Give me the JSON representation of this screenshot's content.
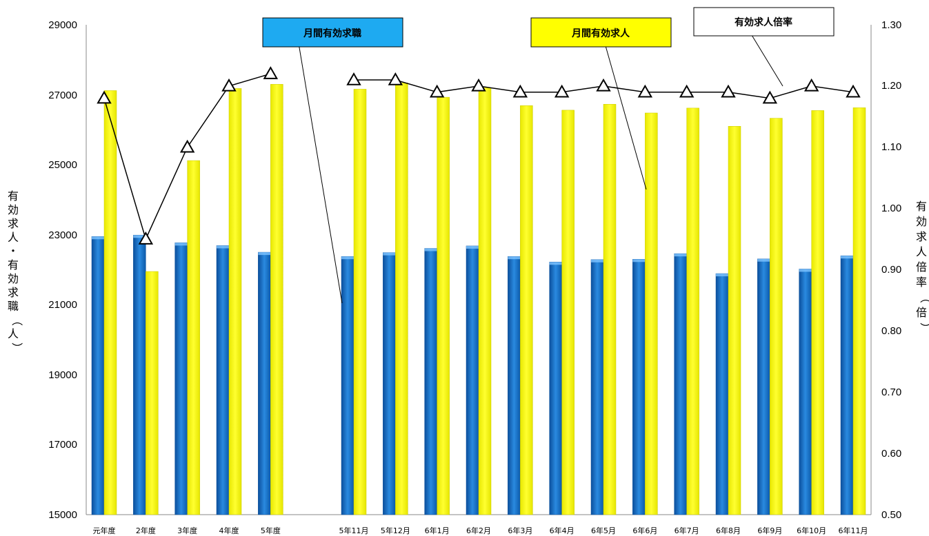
{
  "chart_data": {
    "type": "bar",
    "categories": [
      "元年度",
      "2年度",
      "3年度",
      "4年度",
      "5年度",
      "",
      "5年11月",
      "5年12月",
      "6年1月",
      "6年2月",
      "6年3月",
      "6年4月",
      "6年5月",
      "6年6月",
      "6年7月",
      "6年8月",
      "6年9月",
      "6年10月",
      "6年11月"
    ],
    "series": [
      {
        "name": "月間有効求職",
        "kind": "bar",
        "axis": "left",
        "color": "#1874cd",
        "values": [
          22950,
          22990,
          22770,
          22690,
          22500,
          null,
          22380,
          22490,
          22610,
          22680,
          22380,
          22220,
          22290,
          22300,
          22460,
          21890,
          22310,
          22020,
          22400
        ]
      },
      {
        "name": "月間有効求人",
        "kind": "bar",
        "axis": "left",
        "color": "#ffff00",
        "values": [
          27120,
          21950,
          25120,
          27180,
          27300,
          null,
          27160,
          27340,
          26930,
          27200,
          26690,
          26560,
          26730,
          26480,
          26620,
          26100,
          26330,
          26550,
          26630
        ]
      },
      {
        "name": "有効求人倍率",
        "kind": "line",
        "axis": "right",
        "marker": "triangle",
        "color": "#000000",
        "values": [
          1.18,
          0.95,
          1.1,
          1.2,
          1.22,
          null,
          1.21,
          1.21,
          1.19,
          1.2,
          1.19,
          1.19,
          1.2,
          1.19,
          1.19,
          1.19,
          1.18,
          1.2,
          1.19
        ]
      }
    ],
    "ylim_left": [
      15000,
      29000
    ],
    "ylim_right": [
      0.5,
      1.3
    ],
    "yticks_left": [
      "15000",
      "17000",
      "19000",
      "21000",
      "23000",
      "25000",
      "27000",
      "29000"
    ],
    "yticks_right": [
      "0.50",
      "0.60",
      "0.70",
      "0.80",
      "0.90",
      "1.00",
      "1.10",
      "1.20",
      "1.30"
    ],
    "ylabel_left": "有効求人・有効求職（人）",
    "ylabel_right": "有効求人倍率（倍）",
    "grid": false,
    "legend": [
      {
        "label": "月間有効求職",
        "fill": "#1eaaf1"
      },
      {
        "label": "月間有効求人",
        "fill": "#ffff00"
      },
      {
        "label": "有効求人倍率",
        "fill": "#ffffff"
      }
    ]
  }
}
